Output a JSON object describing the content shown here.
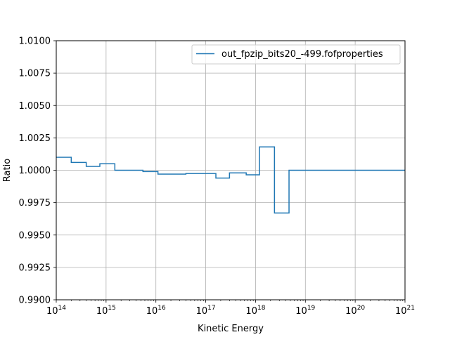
{
  "chart_data": {
    "type": "line",
    "step": "post",
    "title": "",
    "xlabel": "Kinetic Energy",
    "ylabel": "Ratio",
    "xscale": "log",
    "xlim": [
      100000000000000.0,
      1e+21
    ],
    "ylim": [
      0.99,
      1.01
    ],
    "grid": true,
    "legend_position": "top-right",
    "x_ticks": [
      {
        "base": "10",
        "exp": "14",
        "value": 100000000000000.0
      },
      {
        "base": "10",
        "exp": "15",
        "value": 1000000000000000.0
      },
      {
        "base": "10",
        "exp": "16",
        "value": 1e+16
      },
      {
        "base": "10",
        "exp": "17",
        "value": 1e+17
      },
      {
        "base": "10",
        "exp": "18",
        "value": 1e+18
      },
      {
        "base": "10",
        "exp": "19",
        "value": 1e+19
      },
      {
        "base": "10",
        "exp": "20",
        "value": 1e+20
      },
      {
        "base": "10",
        "exp": "21",
        "value": 1e+21
      }
    ],
    "y_ticks": [
      {
        "label": "0.9900",
        "value": 0.99
      },
      {
        "label": "0.9925",
        "value": 0.9925
      },
      {
        "label": "0.9950",
        "value": 0.995
      },
      {
        "label": "0.9975",
        "value": 0.9975
      },
      {
        "label": "1.0000",
        "value": 1.0
      },
      {
        "label": "1.0025",
        "value": 1.0025
      },
      {
        "label": "1.0050",
        "value": 1.005
      },
      {
        "label": "1.0075",
        "value": 1.0075
      },
      {
        "label": "1.0100",
        "value": 1.01
      }
    ],
    "series": [
      {
        "name": "out_fpzip_bits20_-499.fofproperties",
        "color": "#1f77b4",
        "x": [
          100000000000000.0,
          200000000000000.0,
          400000000000000.0,
          750000000000000.0,
          1500000000000000.0,
          5500000000000000.0,
          1.1e+16,
          4e+16,
          1.6e+17,
          3e+17,
          6.5e+17,
          1.2e+18,
          2.4e+18,
          4.7e+18,
          1e+21
        ],
        "y": [
          1.001,
          1.0006,
          1.0003,
          1.0005,
          1.0,
          0.9999,
          0.9997,
          0.99975,
          0.9994,
          0.9998,
          0.99965,
          1.0018,
          0.9967,
          1.0,
          1.0
        ]
      }
    ]
  }
}
